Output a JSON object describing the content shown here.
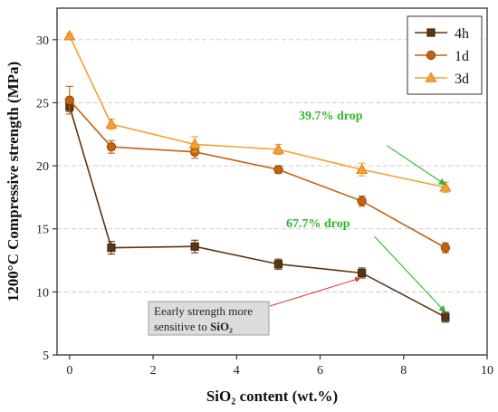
{
  "chart_data": {
    "type": "line",
    "xlabel": "SiO₂ content (wt.%)",
    "ylabel": "1200°C Compressive strength (MPa)",
    "xlim": [
      -0.3,
      10
    ],
    "ylim": [
      5,
      32.5
    ],
    "xticks": [
      0,
      2,
      4,
      6,
      8,
      10
    ],
    "yticks": [
      5,
      10,
      15,
      20,
      25,
      30
    ],
    "x": [
      0,
      1,
      3,
      5,
      7,
      9
    ],
    "grid": "horizontal dashed",
    "legend_position": "top-right",
    "series": [
      {
        "name": "4h",
        "marker": "square",
        "color": "#5a3510",
        "values": [
          24.7,
          13.5,
          13.6,
          12.2,
          11.5,
          8.0
        ],
        "errors": [
          0.4,
          0.5,
          0.5,
          0.4,
          0.4,
          0.4
        ]
      },
      {
        "name": "1d",
        "marker": "circle",
        "color": "#c0620f",
        "values": [
          25.2,
          21.5,
          21.1,
          19.7,
          17.2,
          13.5
        ],
        "errors": [
          1.1,
          0.5,
          0.5,
          0.3,
          0.4,
          0.4
        ]
      },
      {
        "name": "3d",
        "marker": "triangle",
        "color": "#f5a030",
        "values": [
          30.3,
          23.3,
          21.7,
          21.3,
          19.7,
          18.3
        ],
        "errors": [
          0.2,
          0.4,
          0.6,
          0.4,
          0.5,
          0.4
        ]
      }
    ],
    "annotations": [
      {
        "text": "39.7% drop",
        "color": "#2db82d",
        "from": [
          7.6,
          21.6
        ],
        "to": [
          9.0,
          18.5
        ]
      },
      {
        "text": "67.7% drop",
        "color": "#2db82d",
        "from": [
          7.3,
          14.4
        ],
        "to": [
          9.0,
          8.4
        ]
      },
      {
        "text_line1": "Eearly strength more",
        "text_line2_prefix": "sensitive to ",
        "text_line2_bold": "SiO₂",
        "color": "#e03030",
        "from": [
          5.6,
          9.6
        ],
        "to": [
          7.0,
          11.3
        ]
      }
    ]
  }
}
